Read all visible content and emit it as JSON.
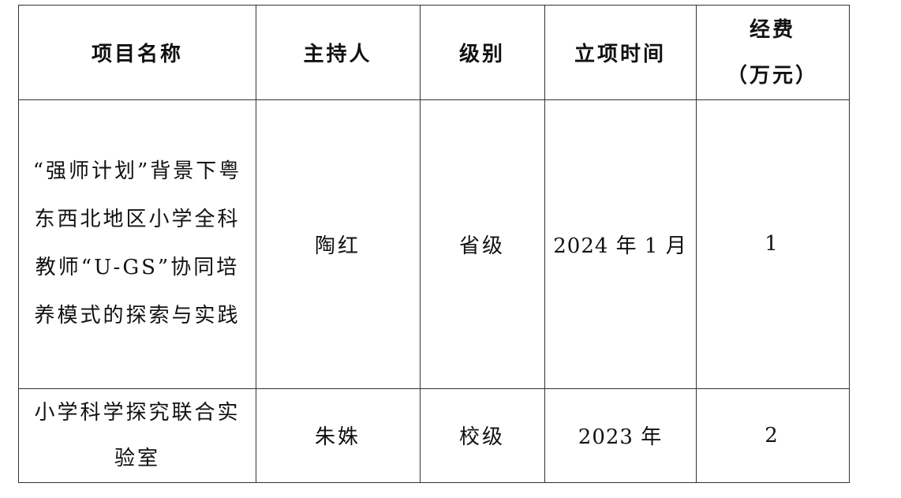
{
  "header": {
    "name": "项目名称",
    "host": "主持人",
    "level": "级别",
    "date": "立项时间",
    "funding_line1": "经费",
    "funding_line2": "（万元）"
  },
  "rows": [
    {
      "name": "“强师计划”背景下粤东西北地区小学全科教师“U-GS”协同培养模式的探索与实践",
      "host": "陶红",
      "level": "省级",
      "date": "2024 年 1 月",
      "funding": "1"
    },
    {
      "name": "小学科学探究联合实验室",
      "host": "朱姝",
      "level": "校级",
      "date": "2023 年",
      "funding": "2"
    }
  ]
}
